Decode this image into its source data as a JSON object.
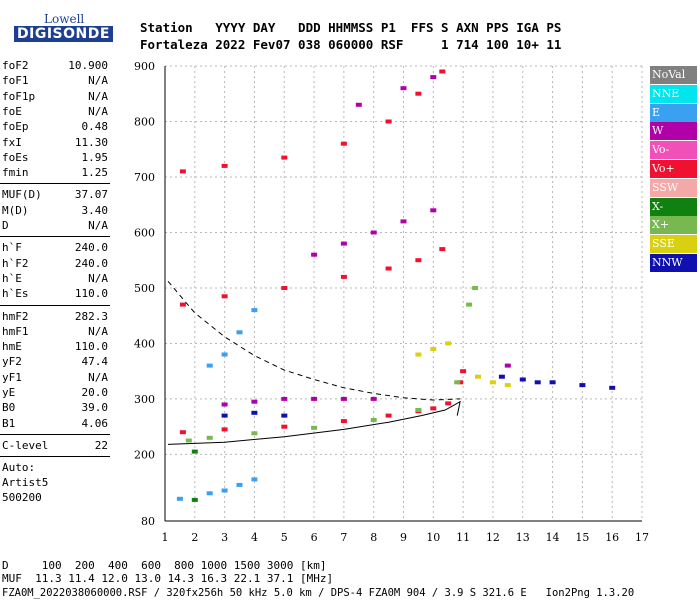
{
  "logo": {
    "top": "Lowell",
    "bottom": "DIGISONDE"
  },
  "header": {
    "line1": "Station   YYYY DAY   DDD HHMMSS P1  FFS S AXN PPS IGA PS",
    "line2": "Fortaleza 2022 Fev07 038 060000 RSF     1 714 100 10+ 11"
  },
  "params_group1": [
    {
      "k": "foF2",
      "v": "10.900"
    },
    {
      "k": "foF1",
      "v": "N/A"
    },
    {
      "k": "foF1p",
      "v": "N/A"
    },
    {
      "k": "foE",
      "v": "N/A"
    },
    {
      "k": "foEp",
      "v": "0.48"
    },
    {
      "k": "fxI",
      "v": "11.30"
    },
    {
      "k": "foEs",
      "v": "1.95"
    },
    {
      "k": "fmin",
      "v": "1.25"
    }
  ],
  "params_group2": [
    {
      "k": "MUF(D)",
      "v": "37.07"
    },
    {
      "k": "M(D)",
      "v": "3.40"
    },
    {
      "k": "D",
      "v": "N/A"
    }
  ],
  "params_group3": [
    {
      "k": "h`F",
      "v": "240.0"
    },
    {
      "k": "h`F2",
      "v": "240.0"
    },
    {
      "k": "h`E",
      "v": "N/A"
    },
    {
      "k": "h`Es",
      "v": "110.0"
    }
  ],
  "params_group4": [
    {
      "k": "hmF2",
      "v": "282.3"
    },
    {
      "k": "hmF1",
      "v": "N/A"
    },
    {
      "k": "hmE",
      "v": "110.0"
    },
    {
      "k": "yF2",
      "v": "47.4"
    },
    {
      "k": "yF1",
      "v": "N/A"
    },
    {
      "k": "yE",
      "v": "20.0"
    },
    {
      "k": "B0",
      "v": "39.0"
    },
    {
      "k": "B1",
      "v": "4.06"
    }
  ],
  "params_group5": [
    {
      "k": "C-level",
      "v": "22"
    }
  ],
  "autoscale": {
    "line1": "Auto:",
    "line2": "Artist5",
    "line3": "500200"
  },
  "legend": [
    {
      "label": "NoVal",
      "color": "#808080"
    },
    {
      "label": "NNE",
      "color": "#00e5ee"
    },
    {
      "label": "E",
      "color": "#3aa0f0"
    },
    {
      "label": "W",
      "color": "#b000a8"
    },
    {
      "label": "Vo-",
      "color": "#f050b8"
    },
    {
      "label": "Vo+",
      "color": "#f01030"
    },
    {
      "label": "SSW",
      "color": "#f4a8a8"
    },
    {
      "label": "X-",
      "color": "#108010"
    },
    {
      "label": "X+",
      "color": "#78b850"
    },
    {
      "label": "SSE",
      "color": "#d8d010"
    },
    {
      "label": "NNW",
      "color": "#1010b0"
    }
  ],
  "footer": {
    "line1": "D     100  200  400  600  800 1000 1500 3000 [km]",
    "line2": "MUF  11.3 11.4 12.0 13.0 14.3 16.3 22.1 37.1 [MHz]",
    "line3": "FZA0M_2022038060000.RSF / 320fx256h 50 kHz 5.0 km / DPS-4 FZA0M 904 / 3.9 S 321.6 E   Ion2Png 1.3.20"
  },
  "chart_data": {
    "type": "scatter",
    "xlim": [
      1,
      17
    ],
    "ylim": [
      80,
      900
    ],
    "xticks": [
      1,
      2,
      3,
      4,
      5,
      6,
      7,
      8,
      9,
      10,
      11,
      12,
      13,
      14,
      15,
      16,
      17
    ],
    "yticks": [
      80,
      200,
      300,
      400,
      500,
      600,
      700,
      800,
      900
    ],
    "xlabel": "",
    "ylabel": "",
    "grid": true,
    "series": [
      {
        "name": "Vo+",
        "color": "#f01030",
        "points": [
          [
            1.6,
            240
          ],
          [
            3,
            245
          ],
          [
            5,
            250
          ],
          [
            7,
            260
          ],
          [
            8.5,
            270
          ],
          [
            9.5,
            278
          ],
          [
            10,
            283
          ],
          [
            10.5,
            292
          ],
          [
            10.9,
            330
          ],
          [
            11,
            350
          ],
          [
            1.6,
            470
          ],
          [
            3,
            485
          ],
          [
            5,
            500
          ],
          [
            7,
            520
          ],
          [
            8.5,
            535
          ],
          [
            9.5,
            550
          ],
          [
            10.3,
            570
          ],
          [
            1.6,
            710
          ],
          [
            3,
            720
          ],
          [
            5,
            735
          ],
          [
            7,
            760
          ],
          [
            8.5,
            800
          ],
          [
            9.5,
            850
          ],
          [
            10.3,
            890
          ]
        ]
      },
      {
        "name": "X+",
        "color": "#78b850",
        "points": [
          [
            1.8,
            225
          ],
          [
            2.5,
            230
          ],
          [
            4,
            238
          ],
          [
            6,
            248
          ],
          [
            8,
            262
          ],
          [
            9.5,
            280
          ],
          [
            10.8,
            330
          ],
          [
            11.2,
            470
          ],
          [
            11.4,
            500
          ]
        ]
      },
      {
        "name": "W",
        "color": "#b000a8",
        "points": [
          [
            3,
            290
          ],
          [
            4,
            295
          ],
          [
            5,
            300
          ],
          [
            6,
            300
          ],
          [
            7,
            300
          ],
          [
            8,
            300
          ],
          [
            6,
            560
          ],
          [
            7,
            580
          ],
          [
            8,
            600
          ],
          [
            9,
            620
          ],
          [
            10,
            640
          ],
          [
            7.5,
            830
          ],
          [
            9,
            860
          ],
          [
            10,
            880
          ],
          [
            12.5,
            360
          ]
        ]
      },
      {
        "name": "E",
        "color": "#3aa0f0",
        "points": [
          [
            1.5,
            120
          ],
          [
            2.5,
            130
          ],
          [
            3,
            135
          ],
          [
            3.5,
            145
          ],
          [
            4,
            155
          ],
          [
            2.5,
            360
          ],
          [
            3,
            380
          ],
          [
            3.5,
            420
          ],
          [
            4,
            460
          ]
        ]
      },
      {
        "name": "NNW",
        "color": "#1010b0",
        "points": [
          [
            3,
            270
          ],
          [
            4,
            275
          ],
          [
            5,
            270
          ],
          [
            12.3,
            340
          ],
          [
            13,
            335
          ],
          [
            13.5,
            330
          ],
          [
            14,
            330
          ],
          [
            15,
            325
          ],
          [
            16,
            320
          ]
        ]
      },
      {
        "name": "SSE",
        "color": "#d8d010",
        "points": [
          [
            9.5,
            380
          ],
          [
            10,
            390
          ],
          [
            10.5,
            400
          ],
          [
            11.5,
            340
          ],
          [
            12,
            330
          ],
          [
            12.5,
            325
          ]
        ]
      },
      {
        "name": "X-",
        "color": "#108010",
        "points": [
          [
            2,
            205
          ],
          [
            2,
            118
          ]
        ]
      }
    ]
  }
}
